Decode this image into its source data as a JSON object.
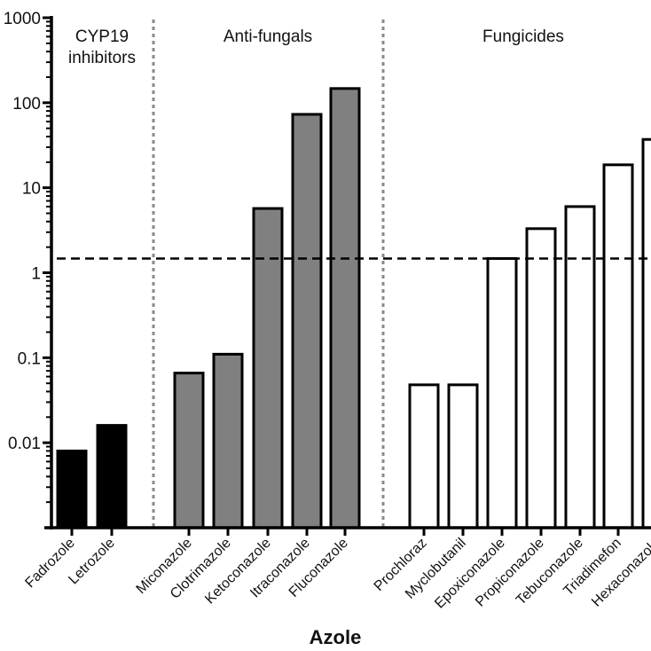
{
  "chart_data": {
    "type": "bar",
    "title": "",
    "xlabel": "Azole",
    "ylabel": "",
    "yscale": "log",
    "ylim": [
      0.001,
      1000
    ],
    "yticks": [
      {
        "value": 1000,
        "label": "1000"
      },
      {
        "value": 100,
        "label": "100"
      },
      {
        "value": 10,
        "label": "10"
      },
      {
        "value": 1,
        "label": "1"
      },
      {
        "value": 0.1,
        "label": "0.1"
      },
      {
        "value": 0.01,
        "label": "0.01"
      }
    ],
    "threshold_line": {
      "value": 1.47,
      "style": "dashed"
    },
    "groups": [
      {
        "name": "CYP19 inhibitors",
        "lines": [
          "CYP19",
          "inhibitors"
        ],
        "fill": "#000000"
      },
      {
        "name": "Anti-fungals",
        "lines": [
          "Anti-fungals"
        ],
        "fill": "#808080"
      },
      {
        "name": "Fungicides",
        "lines": [
          "Fungicides"
        ],
        "fill": "#ffffff"
      }
    ],
    "categories": [
      "Fadrozole",
      "Letrozole",
      "Miconazole",
      "Clotrimazole",
      "Ketoconazole",
      "Itraconazole",
      "Fluconazole",
      "Prochloraz",
      "Myclobutanil",
      "Epoxiconazole",
      "Propiconazole",
      "Tebuconazole",
      "Triadimefon",
      "Hexaconazole"
    ],
    "bars": [
      {
        "category": "Fadrozole",
        "group": 0,
        "value": 0.008
      },
      {
        "category": "Letrozole",
        "group": 0,
        "value": 0.016
      },
      {
        "category": "Miconazole",
        "group": 1,
        "value": 0.066
      },
      {
        "category": "Clotrimazole",
        "group": 1,
        "value": 0.11
      },
      {
        "category": "Ketoconazole",
        "group": 1,
        "value": 5.7
      },
      {
        "category": "Itraconazole",
        "group": 1,
        "value": 73
      },
      {
        "category": "Fluconazole",
        "group": 1,
        "value": 147
      },
      {
        "category": "Prochloraz",
        "group": 2,
        "value": 0.048
      },
      {
        "category": "Myclobutanil",
        "group": 2,
        "value": 0.048
      },
      {
        "category": "Epoxiconazole",
        "group": 2,
        "value": 1.47
      },
      {
        "category": "Propiconazole",
        "group": 2,
        "value": 3.3
      },
      {
        "category": "Tebuconazole",
        "group": 2,
        "value": 6.0
      },
      {
        "category": "Triadimefon",
        "group": 2,
        "value": 18.6
      },
      {
        "category": "Hexaconazole",
        "group": 2,
        "value": 37
      }
    ],
    "grid": false,
    "legend": "none"
  }
}
